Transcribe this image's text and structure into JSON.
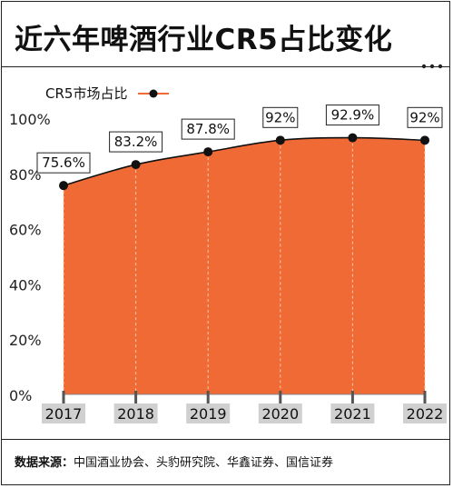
{
  "title": "近六年啤酒行业CR5占比变化",
  "source_label": "数据来源：",
  "source_text": "中国酒业协会、头豹研究院、华鑫证券、国信证券",
  "colors": {
    "area": "#f06a36",
    "line": "#111111",
    "point": "#111111",
    "year_badge": "#d0d0d0",
    "grid": "#bbbbbb"
  },
  "chart_data": {
    "type": "area",
    "x": [
      "2017",
      "2018",
      "2019",
      "2020",
      "2021",
      "2022"
    ],
    "series": [
      {
        "name": "CR5市场占比",
        "values": [
          75.6,
          83.2,
          87.8,
          92,
          92.9,
          92
        ],
        "labels": [
          "75.6%",
          "83.2%",
          "87.8%",
          "92%",
          "92.9%",
          "92%"
        ]
      }
    ],
    "yticks": [
      "0%",
      "20%",
      "40%",
      "60%",
      "80%",
      "100%"
    ],
    "ytick_values": [
      0,
      20,
      40,
      60,
      80,
      100
    ],
    "ylim": [
      0,
      100
    ],
    "legend_position": "top-left",
    "grid": "vertical dashed lines at each year"
  }
}
